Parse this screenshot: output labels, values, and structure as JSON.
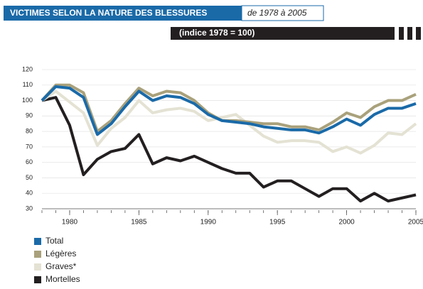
{
  "chart_data": {
    "type": "line",
    "title": "VICTIMES SELON LA NATURE DES BLESSURES",
    "subtitle": "de 1978 à 2005",
    "note": "(indice 1978 = 100)",
    "x": [
      1978,
      1979,
      1980,
      1981,
      1982,
      1983,
      1984,
      1985,
      1986,
      1987,
      1988,
      1989,
      1990,
      1991,
      1992,
      1993,
      1994,
      1995,
      1996,
      1997,
      1998,
      1999,
      2000,
      2001,
      2002,
      2003,
      2004,
      2005
    ],
    "series": [
      {
        "name": "Total",
        "color": "#1a6aa8",
        "values": [
          100,
          109,
          108,
          102,
          78,
          85,
          96,
          106,
          100,
          103,
          102,
          98,
          91,
          87,
          86,
          85,
          83,
          82,
          81,
          81,
          79,
          83,
          88,
          84,
          91,
          95,
          95,
          98
        ]
      },
      {
        "name": "Légères",
        "color": "#a9a17b",
        "values": [
          100,
          110,
          110,
          105,
          80,
          87,
          98,
          108,
          103,
          106,
          105,
          100,
          92,
          87,
          87,
          86,
          85,
          85,
          83,
          83,
          81,
          86,
          92,
          89,
          96,
          100,
          100,
          104
        ]
      },
      {
        "name": "Graves*",
        "color": "#e4e2d3",
        "values": [
          100,
          106,
          99,
          92,
          71,
          82,
          89,
          100,
          92,
          94,
          95,
          93,
          87,
          89,
          91,
          84,
          77,
          73,
          74,
          74,
          73,
          67,
          70,
          66,
          71,
          79,
          78,
          85
        ]
      },
      {
        "name": "Mortelles",
        "color": "#231f20",
        "values": [
          100,
          102,
          84,
          52,
          62,
          67,
          69,
          78,
          59,
          63,
          61,
          64,
          60,
          56,
          53,
          53,
          44,
          48,
          48,
          43,
          38,
          43,
          43,
          35,
          40,
          35,
          37,
          39
        ]
      }
    ],
    "xlim": [
      1978,
      2005
    ],
    "xticks": [
      1980,
      1985,
      1990,
      1995,
      2000,
      2005
    ],
    "ylim": [
      30,
      120
    ],
    "yticks": [
      30,
      40,
      50,
      60,
      70,
      80,
      90,
      100,
      110,
      120
    ],
    "grid": true
  }
}
